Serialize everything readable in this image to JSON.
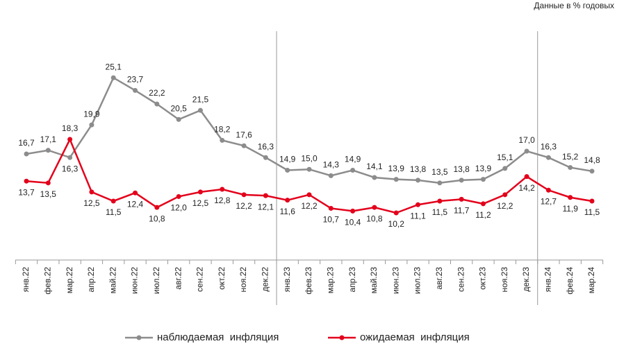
{
  "chart_data": {
    "type": "line",
    "subtitle": "Данные в % годовых",
    "categories": [
      "янв.22",
      "фев.22",
      "мар.22",
      "апр.22",
      "май.22",
      "июн.22",
      "июл.22",
      "авг.22",
      "сен.22",
      "окт.22",
      "ноя.22",
      "дек.22",
      "янв.23",
      "фев.23",
      "мар.23",
      "апр.23",
      "май.23",
      "июн.23",
      "июл.23",
      "авг.23",
      "сен.23",
      "окт.23",
      "ноя.23",
      "дек.23",
      "янв.24",
      "фев.24",
      "мар.24"
    ],
    "series": [
      {
        "name": "наблюдаемая  инфляция",
        "color": "#8c8c8c",
        "values": [
          16.7,
          17.1,
          16.3,
          19.9,
          25.1,
          23.7,
          22.2,
          20.5,
          21.5,
          18.2,
          17.6,
          16.3,
          14.9,
          15.0,
          14.3,
          14.9,
          14.1,
          13.9,
          13.8,
          13.5,
          13.8,
          13.9,
          15.1,
          17.0,
          16.3,
          15.2,
          14.8
        ],
        "value_labels": [
          "16,7",
          "17,1",
          "16,3",
          "19,9",
          "25,1",
          "23,7",
          "22,2",
          "20,5",
          "21,5",
          "18,2",
          "17,6",
          "16,3",
          "14,9",
          "15,0",
          "14,3",
          "14,9",
          "14,1",
          "13,9",
          "13,8",
          "13,5",
          "13,8",
          "13,9",
          "15,1",
          "17,0",
          "16,3",
          "15,2",
          "14,8"
        ]
      },
      {
        "name": "ожидаемая  инфляция",
        "color": "#e3001b",
        "values": [
          13.7,
          13.5,
          18.3,
          12.5,
          11.5,
          12.4,
          10.8,
          12.0,
          12.5,
          12.8,
          12.2,
          12.1,
          11.6,
          12.2,
          10.7,
          10.4,
          10.8,
          10.2,
          11.1,
          11.5,
          11.7,
          11.2,
          12.2,
          14.2,
          12.7,
          11.9,
          11.5
        ],
        "value_labels": [
          "13,7",
          "13,5",
          "18,3",
          "12,5",
          "11,5",
          "12,4",
          "10,8",
          "12,0",
          "12,5",
          "12,8",
          "12,2",
          "12,1",
          "11,6",
          "12,2",
          "10,7",
          "10,4",
          "10,8",
          "10,2",
          "11,1",
          "11,5",
          "11,7",
          "11,2",
          "12,2",
          "14,2",
          "12,7",
          "11,9",
          "11,5"
        ]
      }
    ],
    "ylim": [
      5,
      30
    ]
  }
}
